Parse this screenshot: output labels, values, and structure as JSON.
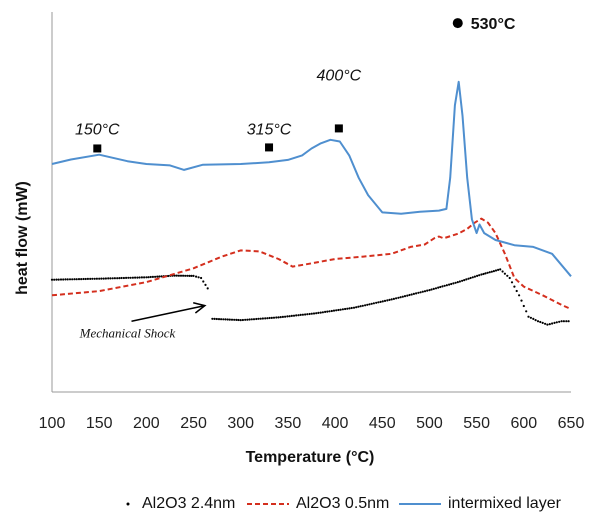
{
  "chart_data": {
    "type": "line",
    "title": "",
    "xlabel": "Temperature (°C)",
    "ylabel": "heat flow (mW)",
    "xlim": [
      100,
      650
    ],
    "x_ticks": [
      "100",
      "150",
      "200",
      "250",
      "300",
      "350",
      "400",
      "450",
      "500",
      "550",
      "600",
      "650"
    ],
    "y_ticks_shown": false,
    "grid": false,
    "legend_position": "bottom",
    "series": [
      {
        "name": "Al2O3 2.4nm",
        "style": "dotted",
        "color": "#000000",
        "segments": [
          [
            [
              100,
              0.525
            ],
            [
              150,
              0.528
            ],
            [
              200,
              0.532
            ],
            [
              230,
              0.537
            ],
            [
              250,
              0.536
            ],
            [
              258,
              0.53
            ],
            [
              265,
              0.5
            ],
            [
              267,
              0.48
            ]
          ],
          [
            [
              270,
              0.412
            ],
            [
              300,
              0.408
            ],
            [
              340,
              0.416
            ],
            [
              380,
              0.428
            ],
            [
              420,
              0.444
            ],
            [
              460,
              0.468
            ],
            [
              500,
              0.495
            ],
            [
              530,
              0.518
            ],
            [
              555,
              0.54
            ],
            [
              575,
              0.555
            ],
            [
              585,
              0.53
            ],
            [
              595,
              0.48
            ],
            [
              605,
              0.418
            ],
            [
              615,
              0.405
            ],
            [
              625,
              0.395
            ],
            [
              640,
              0.405
            ],
            [
              650,
              0.405
            ]
          ]
        ]
      },
      {
        "name": "Al2O3 0.5nm",
        "style": "dashed",
        "color": "#d42f1e",
        "points": [
          [
            100,
            0.48
          ],
          [
            150,
            0.492
          ],
          [
            200,
            0.518
          ],
          [
            250,
            0.558
          ],
          [
            280,
            0.592
          ],
          [
            300,
            0.61
          ],
          [
            320,
            0.607
          ],
          [
            340,
            0.585
          ],
          [
            355,
            0.563
          ],
          [
            370,
            0.57
          ],
          [
            400,
            0.585
          ],
          [
            430,
            0.592
          ],
          [
            460,
            0.6
          ],
          [
            480,
            0.62
          ],
          [
            495,
            0.627
          ],
          [
            505,
            0.645
          ],
          [
            510,
            0.65
          ],
          [
            515,
            0.645
          ],
          [
            530,
            0.658
          ],
          [
            540,
            0.672
          ],
          [
            548,
            0.69
          ],
          [
            555,
            0.702
          ],
          [
            562,
            0.69
          ],
          [
            570,
            0.66
          ],
          [
            580,
            0.6
          ],
          [
            590,
            0.53
          ],
          [
            600,
            0.505
          ],
          [
            620,
            0.48
          ],
          [
            640,
            0.452
          ],
          [
            650,
            0.44
          ]
        ]
      },
      {
        "name": "intermixed layer",
        "style": "solid",
        "color": "#4f8fcf",
        "points": [
          [
            100,
            0.86
          ],
          [
            120,
            0.873
          ],
          [
            150,
            0.887
          ],
          [
            180,
            0.868
          ],
          [
            200,
            0.86
          ],
          [
            225,
            0.856
          ],
          [
            240,
            0.843
          ],
          [
            260,
            0.858
          ],
          [
            300,
            0.86
          ],
          [
            330,
            0.865
          ],
          [
            350,
            0.872
          ],
          [
            365,
            0.885
          ],
          [
            375,
            0.905
          ],
          [
            385,
            0.92
          ],
          [
            395,
            0.93
          ],
          [
            405,
            0.925
          ],
          [
            415,
            0.885
          ],
          [
            425,
            0.82
          ],
          [
            435,
            0.77
          ],
          [
            450,
            0.72
          ],
          [
            470,
            0.716
          ],
          [
            490,
            0.722
          ],
          [
            510,
            0.725
          ],
          [
            518,
            0.73
          ],
          [
            522,
            0.82
          ],
          [
            527,
            1.03
          ],
          [
            531,
            1.098
          ],
          [
            535,
            1.0
          ],
          [
            540,
            0.82
          ],
          [
            545,
            0.7
          ],
          [
            550,
            0.66
          ],
          [
            553,
            0.685
          ],
          [
            558,
            0.66
          ],
          [
            570,
            0.64
          ],
          [
            590,
            0.625
          ],
          [
            610,
            0.62
          ],
          [
            630,
            0.6
          ],
          [
            650,
            0.535
          ]
        ]
      }
    ],
    "annotations": [
      {
        "text": "150°C",
        "x": 148,
        "y": 0.945,
        "marker": "square",
        "marker_y": 0.905
      },
      {
        "text": "315°C",
        "x": 330,
        "y": 0.945,
        "marker": "square",
        "marker_y": 0.908
      },
      {
        "text": "400°C",
        "x": 404,
        "y": 1.102,
        "marker": "square",
        "marker_y": 0.963
      },
      {
        "text": "530°C",
        "x": 530,
        "y": 1.265,
        "marker": "circle",
        "marker_y": 1.265
      },
      {
        "text": "Mechanical Shock",
        "x": 180,
        "y": 0.37,
        "arrow_to": [
          262,
          0.45
        ]
      }
    ]
  }
}
